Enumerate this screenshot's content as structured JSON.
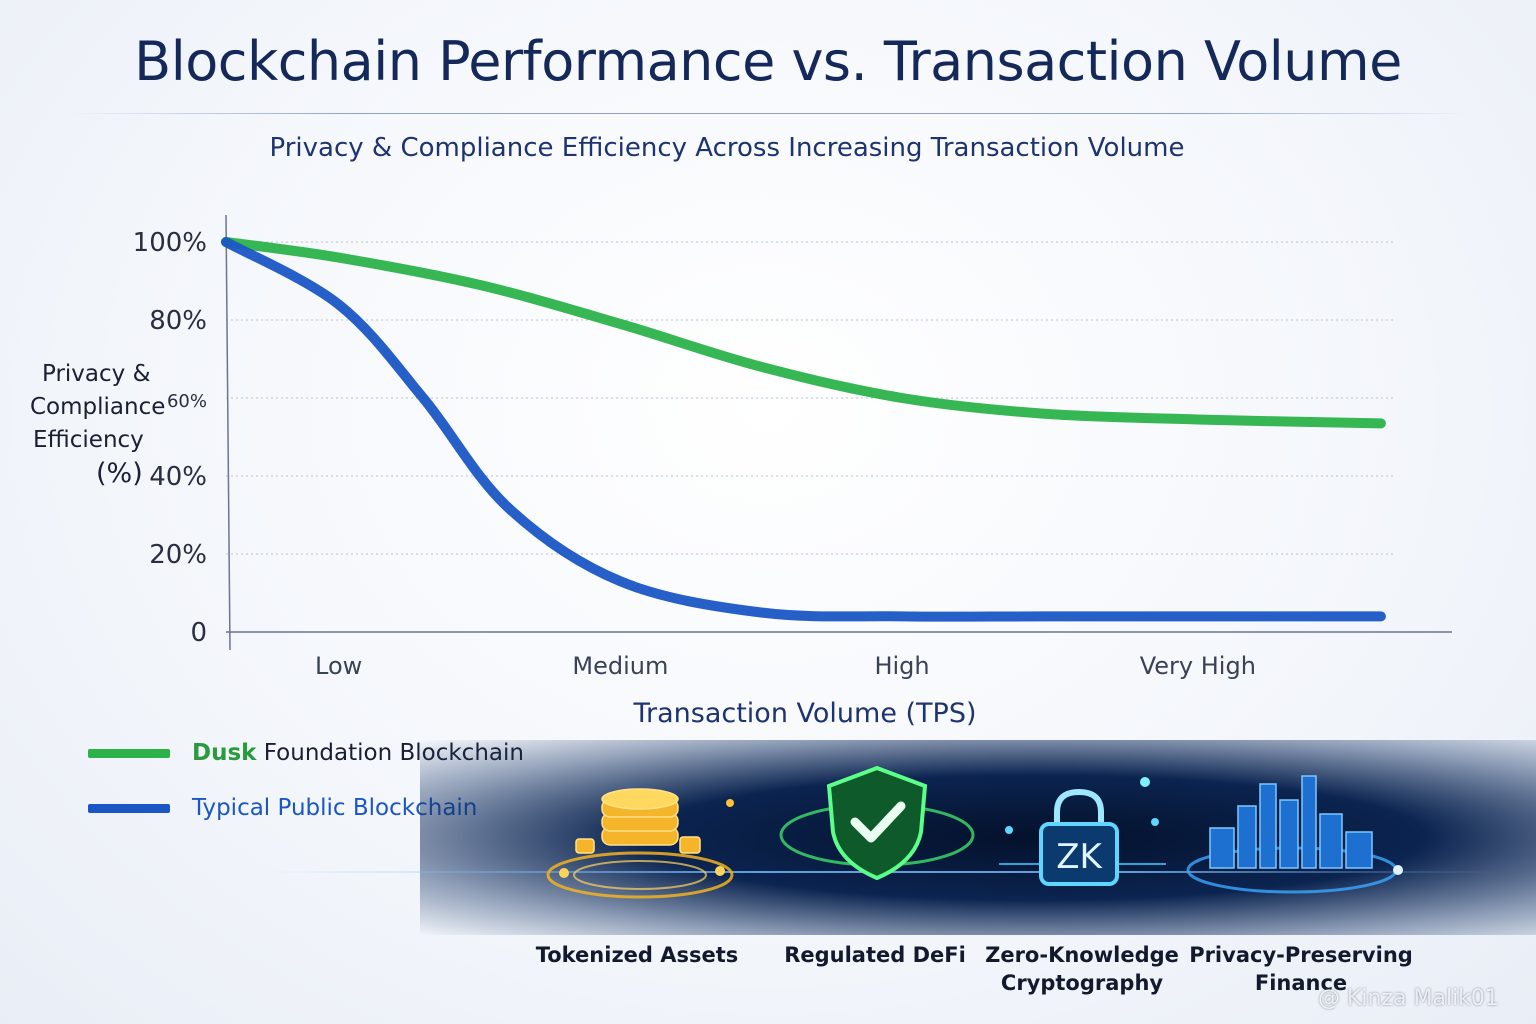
{
  "chart_data": {
    "type": "line",
    "title": "Blockchain Performance vs. Transaction Volume",
    "subtitle": "Privacy & Compliance Efficiency Across Increasing Transaction Volume",
    "ylabel_lines": [
      "Privacy &",
      "Compliance",
      "Efficiency",
      "(%)"
    ],
    "xlabel": "Transaction Volume (TPS)",
    "ylim": [
      0,
      100
    ],
    "yticks": [
      {
        "value": 100,
        "label": "100%"
      },
      {
        "value": 80,
        "label": "80%"
      },
      {
        "value": 60,
        "label": "60%"
      },
      {
        "value": 40,
        "label": "40%"
      },
      {
        "value": 20,
        "label": "20%"
      },
      {
        "value": 0,
        "label": "0"
      }
    ],
    "xlim": [
      0,
      4.15
    ],
    "xticks": [
      {
        "value": 0.4,
        "label": "Low"
      },
      {
        "value": 1.4,
        "label": "Medium"
      },
      {
        "value": 2.4,
        "label": "High"
      },
      {
        "value": 3.45,
        "label": "Very High"
      }
    ],
    "grid": true,
    "series": [
      {
        "name": "Dusk Foundation Blockchain",
        "name_bold": "Dusk",
        "name_rest": " Foundation Blockchain",
        "color": "#2bb34a",
        "x": [
          0,
          0.4,
          0.9,
          1.4,
          1.9,
          2.4,
          2.9,
          3.45,
          4.1
        ],
        "y": [
          100,
          96,
          89,
          79,
          68,
          60,
          56,
          54.5,
          53.5
        ]
      },
      {
        "name": "Typical Public Blockchain",
        "color": "#1a56c4",
        "x": [
          0,
          0.4,
          0.7,
          1.0,
          1.4,
          1.9,
          2.4,
          2.9,
          3.45,
          4.1
        ],
        "y": [
          100,
          84,
          60,
          32,
          13,
          5,
          4,
          4,
          4,
          4
        ]
      }
    ]
  },
  "features": [
    {
      "label": "Tokenized Assets",
      "icon": "gold-coins-icon",
      "color": "#f2b320"
    },
    {
      "label": "Regulated DeFi",
      "icon": "shield-check-icon",
      "color": "#3de06a"
    },
    {
      "label": "Zero-Knowledge Cryptography",
      "label_lines": [
        "Zero-Knowledge",
        "Cryptography"
      ],
      "icon": "zk-lock-icon",
      "icon_text": "ZK",
      "color": "#38c7ff"
    },
    {
      "label": "Privacy-Preserving Finance",
      "label_lines": [
        "Privacy-Preserving",
        "Finance"
      ],
      "icon": "city-skyline-icon",
      "color": "#3aa8ff"
    }
  ],
  "watermark": "@ Kinza Malik01"
}
